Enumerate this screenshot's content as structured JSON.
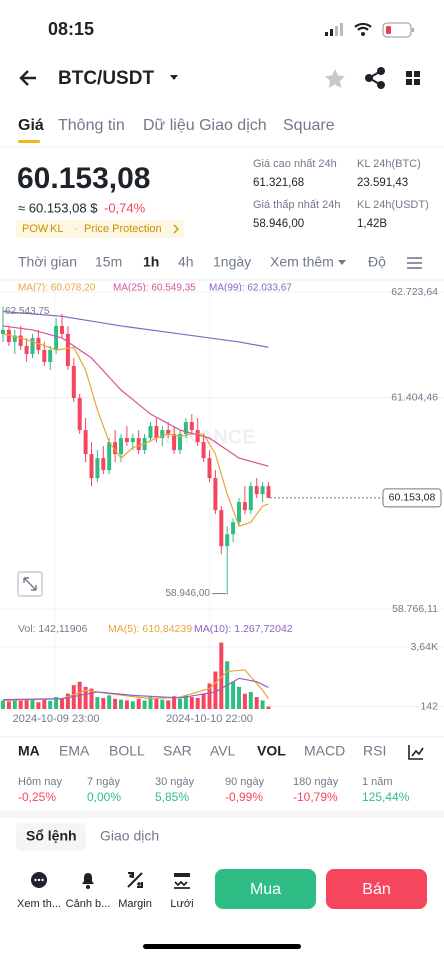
{
  "status": {
    "time": "08:15"
  },
  "header": {
    "pair": "BTC/USDT"
  },
  "tabs": [
    "Giá",
    "Thông tin",
    "Dữ liệu Giao dịch",
    "Square"
  ],
  "price": {
    "last": "60.153,08",
    "fiat": "≈ 60.153,08 $",
    "change": "-0,74%",
    "tags": [
      "POW",
      "KL",
      "Price Protection"
    ]
  },
  "stats": [
    {
      "label": "Giá cao nhất 24h",
      "value": "61.321,68"
    },
    {
      "label": "KL 24h(BTC)",
      "value": "23.591,43"
    },
    {
      "label": "Giá thấp nhất 24h",
      "value": "58.946,00"
    },
    {
      "label": "KL 24h(USDT)",
      "value": "1,42B"
    }
  ],
  "intervals": [
    "Thời gian",
    "15m",
    "1h",
    "4h",
    "1ngày",
    "Xem thêm",
    "Độ"
  ],
  "chart_data": {
    "type": "candlestick",
    "watermark": "BINANCE",
    "ma_labels": [
      {
        "label": "MA(7): 60.078,20",
        "color": "#e8a53a"
      },
      {
        "label": "MA(25): 60.549,35",
        "color": "#d5539b"
      },
      {
        "label": "MA(99): 62.033,67",
        "color": "#8b63c6"
      }
    ],
    "ylim": [
      58766.11,
      62723.64
    ],
    "yticks": [
      {
        "value": 62723.64,
        "label": "62.723,64"
      },
      {
        "value": 61404.46,
        "label": "61.404,46"
      },
      {
        "value": 58766.11,
        "label": "58.766,11"
      }
    ],
    "up_color": "#2ebd85",
    "down_color": "#f6465d",
    "max_label": {
      "value": 62543.75,
      "label": "62.543,75"
    },
    "min_label": {
      "value": 58946.0,
      "label": "58.946,00"
    },
    "last": {
      "value": 60153.08,
      "label": "60.153,08"
    },
    "x_labels": [
      {
        "index": 9,
        "label": "2024-10-09 23:00"
      },
      {
        "index": 35,
        "label": "2024-10-10 22:00"
      }
    ],
    "candles": [
      [
        62200,
        62543.75,
        62100,
        62250
      ],
      [
        62250,
        62300,
        62050,
        62100
      ],
      [
        62100,
        62250,
        61950,
        62180
      ],
      [
        62180,
        62300,
        62000,
        62050
      ],
      [
        62050,
        62150,
        61850,
        61950
      ],
      [
        61950,
        62200,
        61900,
        62150
      ],
      [
        62150,
        62250,
        61950,
        62000
      ],
      [
        62000,
        62100,
        61800,
        61850
      ],
      [
        61850,
        62050,
        61750,
        62000
      ],
      [
        62000,
        62400,
        61950,
        62300
      ],
      [
        62300,
        62450,
        62150,
        62200
      ],
      [
        62200,
        62300,
        61750,
        61800
      ],
      [
        61800,
        61900,
        61350,
        61400
      ],
      [
        61400,
        61450,
        60950,
        61000
      ],
      [
        61000,
        61150,
        60600,
        60700
      ],
      [
        60700,
        60850,
        60300,
        60400
      ],
      [
        60400,
        60750,
        60350,
        60650
      ],
      [
        60650,
        60800,
        60450,
        60500
      ],
      [
        60500,
        60900,
        60450,
        60850
      ],
      [
        60850,
        61000,
        60600,
        60700
      ],
      [
        60700,
        60950,
        60600,
        60900
      ],
      [
        60900,
        61050,
        60800,
        60850
      ],
      [
        60850,
        60950,
        60750,
        60900
      ],
      [
        60900,
        61000,
        60700,
        60750
      ],
      [
        60750,
        60950,
        60700,
        60900
      ],
      [
        60900,
        61100,
        60850,
        61050
      ],
      [
        61050,
        61150,
        60850,
        60900
      ],
      [
        60900,
        61050,
        60800,
        61000
      ],
      [
        61000,
        61100,
        60900,
        60950
      ],
      [
        60950,
        61050,
        60700,
        60750
      ],
      [
        60750,
        61000,
        60700,
        60950
      ],
      [
        60950,
        61150,
        60900,
        61100
      ],
      [
        61100,
        61200,
        60950,
        61000
      ],
      [
        61000,
        61150,
        60800,
        60850
      ],
      [
        60850,
        60950,
        60600,
        60650
      ],
      [
        60650,
        60750,
        60350,
        60400
      ],
      [
        60400,
        60500,
        59950,
        60000
      ],
      [
        60000,
        60050,
        59450,
        59550
      ],
      [
        59550,
        59800,
        58946,
        59700
      ],
      [
        59700,
        59900,
        59600,
        59850
      ],
      [
        59850,
        60150,
        59800,
        60100
      ],
      [
        60100,
        60300,
        59950,
        60000
      ],
      [
        60000,
        60350,
        59950,
        60300
      ],
      [
        60300,
        60400,
        60150,
        60200
      ],
      [
        60200,
        60350,
        60100,
        60300
      ],
      [
        60300,
        60350,
        60150,
        60153.08
      ]
    ],
    "ma_series": [
      {
        "name": "MA(7)",
        "color": "#e8a53a",
        "x": [
          0,
          3,
          6,
          9,
          12,
          14,
          16,
          18,
          20,
          22,
          24,
          26,
          28,
          30,
          32,
          34,
          36,
          38,
          40,
          42,
          44,
          45
        ],
        "values": [
          62200,
          62150,
          62080,
          62000,
          62030,
          61750,
          61250,
          60850,
          60650,
          60780,
          60830,
          60900,
          60950,
          60920,
          60950,
          60950,
          60700,
          60200,
          59800,
          59850,
          60050,
          60078.2
        ]
      },
      {
        "name": "MA(25)",
        "color": "#d5539b",
        "x": [
          0,
          5,
          10,
          15,
          20,
          25,
          30,
          35,
          40,
          45
        ],
        "values": [
          62300,
          62250,
          62150,
          61900,
          61500,
          61200,
          61000,
          60900,
          60650,
          60549.35
        ]
      },
      {
        "name": "MA(99)",
        "color": "#8b63c6",
        "x": [
          0,
          10,
          20,
          30,
          40,
          45
        ],
        "values": [
          62480,
          62420,
          62300,
          62200,
          62100,
          62033.67
        ]
      }
    ],
    "volume": {
      "labels": [
        {
          "label": "Vol: 142,11906",
          "color": "#707a8a"
        },
        {
          "label": "MA(5): 610,84239",
          "color": "#e8a53a"
        },
        {
          "label": "MA(10): 1.267,72042",
          "color": "#8b63c6"
        }
      ],
      "ylim": [
        0,
        4050
      ],
      "yticks": [
        {
          "value": 3640,
          "label": "3,64K"
        },
        142
      ],
      "values": [
        500,
        450,
        520,
        480,
        600,
        550,
        400,
        620,
        480,
        700,
        650,
        900,
        1400,
        1600,
        1300,
        1200,
        700,
        650,
        800,
        600,
        550,
        500,
        450,
        600,
        500,
        700,
        650,
        550,
        500,
        750,
        600,
        800,
        700,
        650,
        900,
        1500,
        2200,
        3900,
        2800,
        1600,
        1300,
        900,
        1000,
        700,
        500,
        142.11906
      ],
      "ma_series": [
        {
          "name": "MA(5)",
          "color": "#e8a53a",
          "x": [
            0,
            10,
            14,
            18,
            25,
            30,
            35,
            38,
            41,
            44,
            45
          ],
          "values": [
            500,
            600,
            1100,
            900,
            600,
            700,
            1200,
            2200,
            2300,
            1100,
            610.84239
          ]
        },
        {
          "name": "MA(10)",
          "color": "#8b63c6",
          "x": [
            0,
            10,
            16,
            22,
            30,
            36,
            40,
            43,
            45
          ],
          "values": [
            550,
            600,
            1000,
            800,
            650,
            1000,
            1800,
            1600,
            1267.72042
          ]
        }
      ]
    }
  },
  "indicators": [
    "MA",
    "EMA",
    "BOLL",
    "SAR",
    "AVL",
    "VOL",
    "MACD",
    "RSI"
  ],
  "performance": [
    {
      "label": "Hôm nay",
      "value": "-0,25%",
      "color": "#f6465d"
    },
    {
      "label": "7 ngày",
      "value": "0,00%",
      "color": "#2ebd85"
    },
    {
      "label": "30 ngày",
      "value": "5,85%",
      "color": "#2ebd85"
    },
    {
      "label": "90 ngày",
      "value": "-0,99%",
      "color": "#f6465d"
    },
    {
      "label": "180 ngày",
      "value": "-10,79%",
      "color": "#f6465d"
    },
    {
      "label": "1 năm",
      "value": "125,44%",
      "color": "#2ebd85"
    }
  ],
  "bottom_tabs": [
    "Sổ lệnh",
    "Giao dịch"
  ],
  "actions": [
    "Xem th...",
    "Cảnh b...",
    "Margin",
    "Lưới"
  ],
  "buttons": {
    "buy": "Mua",
    "sell": "Bán"
  }
}
